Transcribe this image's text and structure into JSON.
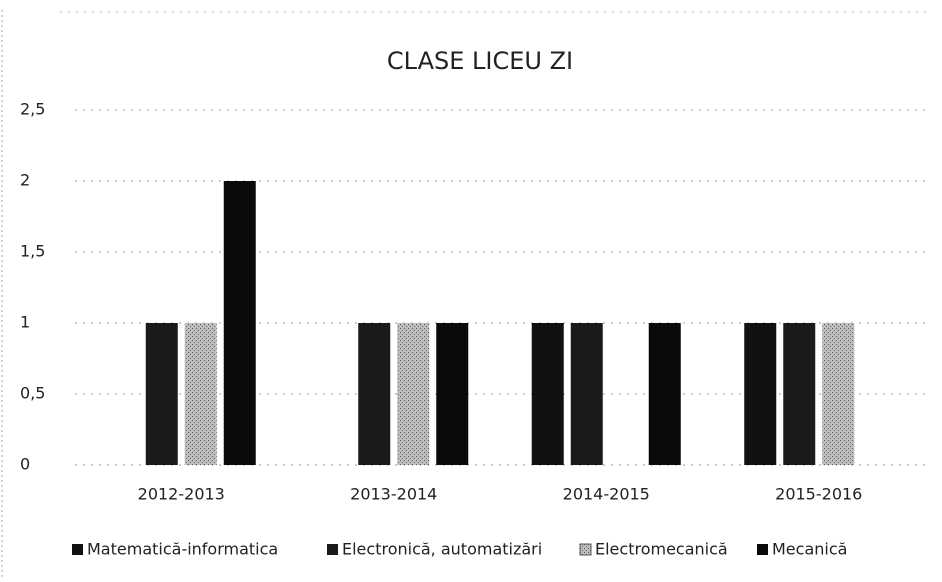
{
  "chart_data": {
    "type": "bar",
    "title": "CLASE LICEU ZI",
    "categories": [
      "2012-2013",
      "2013-2014",
      "2014-2015",
      "2015-2016"
    ],
    "series": [
      {
        "name": "Matematică-informatica",
        "color": "#111111",
        "values": [
          0,
          0,
          1,
          1
        ]
      },
      {
        "name": "Electronică, automatizări",
        "color": "#1a1a1a",
        "values": [
          1,
          1,
          1,
          1
        ]
      },
      {
        "name": "Electromecanică",
        "color": "#a8a8a8",
        "values": [
          1,
          1,
          0,
          1
        ]
      },
      {
        "name": "Mecanică",
        "color": "#0a0a0a",
        "values": [
          2,
          1,
          1,
          0
        ]
      }
    ],
    "ylim": [
      0,
      2.5
    ],
    "yticks": [
      0,
      {
        "value": 0.5,
        "label": "0,5"
      },
      1,
      {
        "value": 1.5,
        "label": "1,5"
      },
      2,
      {
        "value": 2.5,
        "label": "2,5"
      }
    ],
    "grid": true,
    "legend": "bottom"
  }
}
